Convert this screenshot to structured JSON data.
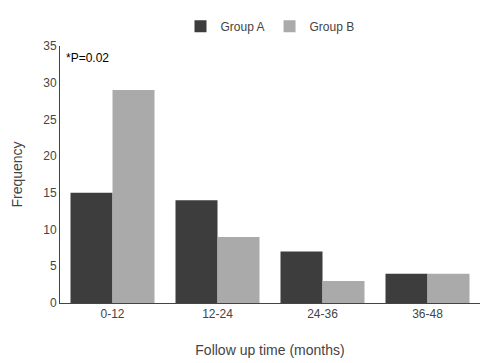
{
  "chart_data": {
    "type": "bar",
    "xlabel": "Follow up time (months)",
    "ylabel": "Frequency",
    "categories": [
      "0-12",
      "12-24",
      "24-36",
      "36-48"
    ],
    "series": [
      {
        "name": "Group A",
        "color": "#3d3d3d",
        "values": [
          15,
          14,
          7,
          4
        ]
      },
      {
        "name": "Group B",
        "color": "#aaaaaa",
        "values": [
          29,
          9,
          3,
          4
        ]
      }
    ],
    "ylim": [
      0,
      35
    ],
    "yticks": [
      0,
      5,
      10,
      15,
      20,
      25,
      30,
      35
    ],
    "annotations": [
      "*P=0.02"
    ],
    "grid": false,
    "legend": "top"
  }
}
